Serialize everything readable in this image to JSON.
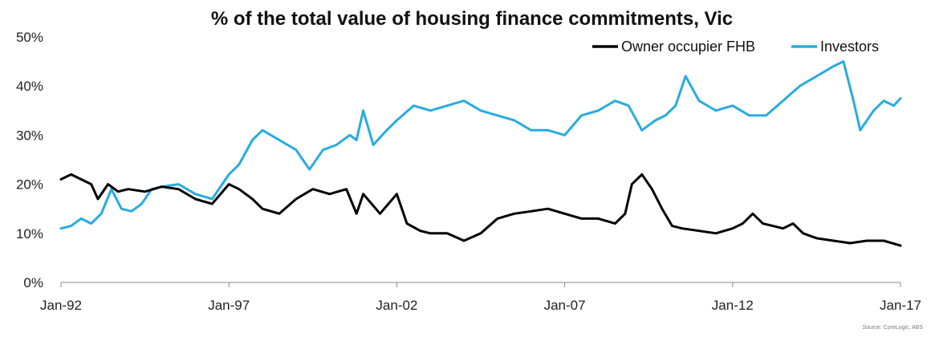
{
  "chart_data": {
    "type": "line",
    "title": "% of the total value of housing finance commitments, Vic",
    "xlabel": "",
    "ylabel": "",
    "x_ticks": [
      "Jan-92",
      "Jan-97",
      "Jan-02",
      "Jan-07",
      "Jan-12",
      "Jan-17"
    ],
    "y_ticks": [
      "0%",
      "10%",
      "20%",
      "30%",
      "40%",
      "50%"
    ],
    "ylim": [
      0,
      50
    ],
    "xlim": [
      1992.0,
      2017.0
    ],
    "legend_position": "top-right",
    "grid": false,
    "source": "Source: CoreLogic, ABS",
    "series": [
      {
        "name": "Owner occupier FHB",
        "color": "#000000",
        "x": [
          1992.0,
          1992.3,
          1992.6,
          1992.9,
          1993.1,
          1993.4,
          1993.7,
          1994.0,
          1994.5,
          1995.0,
          1995.5,
          1996.0,
          1996.5,
          1997.0,
          1997.3,
          1997.7,
          1998.0,
          1998.5,
          1999.0,
          1999.5,
          2000.0,
          2000.5,
          2000.8,
          2001.0,
          2001.5,
          2002.0,
          2002.3,
          2002.7,
          2003.0,
          2003.5,
          2004.0,
          2004.5,
          2005.0,
          2005.5,
          2006.0,
          2006.5,
          2007.0,
          2007.5,
          2008.0,
          2008.5,
          2008.8,
          2009.0,
          2009.3,
          2009.6,
          2009.9,
          2010.2,
          2010.5,
          2011.0,
          2011.5,
          2012.0,
          2012.3,
          2012.6,
          2012.9,
          2013.2,
          2013.5,
          2013.8,
          2014.1,
          2014.5,
          2015.0,
          2015.5,
          2016.0,
          2016.5,
          2017.0
        ],
        "values": [
          21,
          22,
          21,
          20,
          17,
          20,
          18.5,
          19,
          18.5,
          19.5,
          19,
          17,
          16,
          20,
          19,
          17,
          15,
          14,
          17,
          19,
          18,
          19,
          14,
          18,
          14,
          18,
          12,
          10.5,
          10,
          10,
          8.5,
          10,
          13,
          14,
          14.5,
          15,
          14,
          13,
          13,
          12,
          14,
          20,
          22,
          19,
          15,
          11.5,
          11,
          10.5,
          10,
          11,
          12,
          14,
          12,
          11.5,
          11,
          12,
          10,
          9,
          8.5,
          8,
          8.5,
          8.5,
          7.5
        ]
      },
      {
        "name": "Investors",
        "color": "#29ABE2",
        "x": [
          1992.0,
          1992.3,
          1992.6,
          1992.9,
          1993.2,
          1993.5,
          1993.8,
          1994.1,
          1994.4,
          1994.7,
          1995.0,
          1995.5,
          1996.0,
          1996.5,
          1997.0,
          1997.3,
          1997.7,
          1998.0,
          1998.5,
          1999.0,
          1999.4,
          1999.8,
          2000.2,
          2000.6,
          2000.8,
          2001.0,
          2001.3,
          2001.7,
          2002.0,
          2002.5,
          2003.0,
          2003.5,
          2004.0,
          2004.5,
          2005.0,
          2005.5,
          2006.0,
          2006.5,
          2007.0,
          2007.5,
          2008.0,
          2008.5,
          2008.9,
          2009.3,
          2009.7,
          2010.0,
          2010.3,
          2010.6,
          2011.0,
          2011.5,
          2012.0,
          2012.5,
          2013.0,
          2013.5,
          2014.0,
          2014.5,
          2015.0,
          2015.3,
          2015.6,
          2015.8,
          2016.0,
          2016.2,
          2016.5,
          2016.8,
          2017.0
        ],
        "values": [
          11,
          11.5,
          13,
          12,
          14,
          19,
          15,
          14.5,
          16,
          19,
          19.5,
          20,
          18,
          17,
          22,
          24,
          29,
          31,
          29,
          27,
          23,
          27,
          28,
          30,
          29,
          35,
          28,
          31,
          33,
          36,
          35,
          36,
          37,
          35,
          34,
          33,
          31,
          31,
          30,
          34,
          35,
          37,
          36,
          31,
          33,
          34,
          36,
          42,
          37,
          35,
          36,
          34,
          34,
          37,
          40,
          42,
          44,
          45,
          37,
          31,
          33,
          35,
          37,
          36,
          37.5
        ]
      }
    ]
  }
}
